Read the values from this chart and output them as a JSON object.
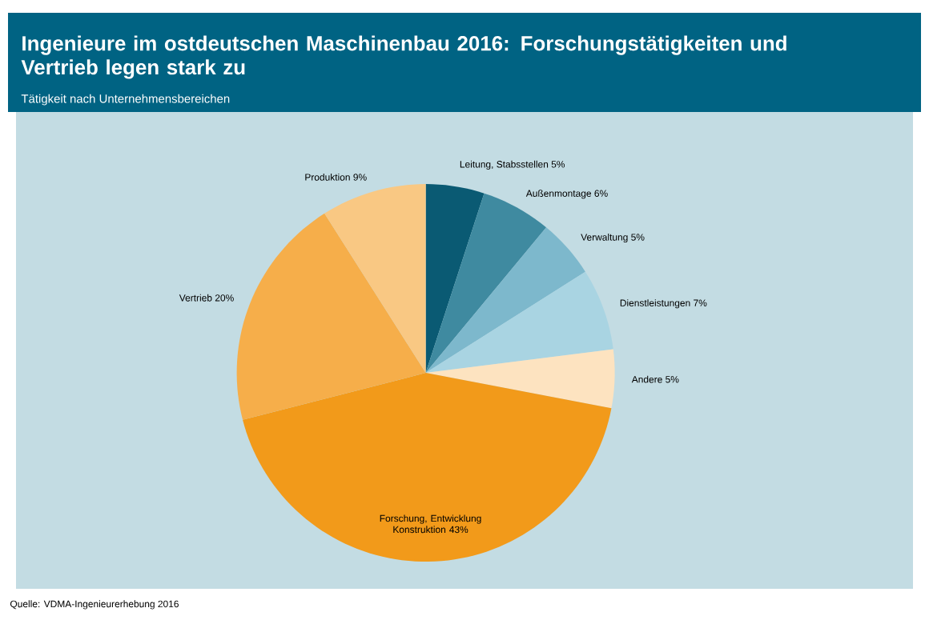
{
  "chart_data": {
    "type": "pie",
    "title": "Ingenieure im ostdeutschen Maschinenbau 2016: Forschungstätigkeiten und Vertrieb legen stark zu",
    "subtitle": "Tätigkeit nach Unternehmensbereichen",
    "categories": [
      "Leitung, Stabsstellen",
      "Außenmontage",
      "Verwaltung",
      "Dienstleistungen",
      "Andere",
      "Forschung, Entwicklung Konstruktion",
      "Vertrieb",
      "Produktion"
    ],
    "values": [
      5,
      6,
      5,
      7,
      5,
      43,
      20,
      9
    ],
    "value_labels": [
      "5%",
      "6%",
      "5%",
      "7%",
      "5%",
      "43%",
      "20%",
      "9%"
    ],
    "colors": [
      "#0a5a73",
      "#3f8aa0",
      "#7db8cc",
      "#a9d4e2",
      "#fde3c0",
      "#f29a1a",
      "#f6ae4a",
      "#f9c883"
    ],
    "annotations": [
      "Quelle: VDMA-Ingenieurerhebung 2016"
    ]
  }
}
